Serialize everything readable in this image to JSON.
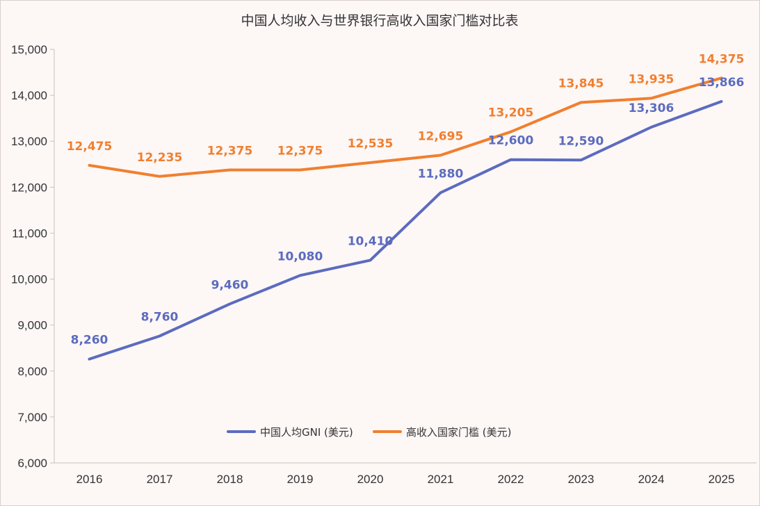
{
  "chart_data": {
    "type": "line",
    "title": "中国人均收入与世界银行高收入国家门槛对比表",
    "xlabel": "",
    "ylabel": "",
    "categories": [
      "2016",
      "2017",
      "2018",
      "2019",
      "2020",
      "2021",
      "2022",
      "2023",
      "2024",
      "2025"
    ],
    "ylim": [
      6000,
      15000
    ],
    "yticks": [
      "6,000",
      "7,000",
      "8,000",
      "9,000",
      "10,000",
      "11,000",
      "12,000",
      "13,000",
      "14,000",
      "15,000"
    ],
    "ytick_values": [
      6000,
      7000,
      8000,
      9000,
      10000,
      11000,
      12000,
      13000,
      14000,
      15000
    ],
    "grid": false,
    "legend_position": "bottom-center inside plot",
    "series": [
      {
        "name": "中国人均GNI (美元)",
        "color": "#5b6bbf",
        "values": [
          8260,
          8760,
          9460,
          10080,
          10410,
          11880,
          12600,
          12590,
          13306,
          13866
        ],
        "labels": [
          "8,260",
          "8,760",
          "9,460",
          "10,080",
          "10,410",
          "11,880",
          "12,600",
          "12,590",
          "13,306",
          "13,866"
        ]
      },
      {
        "name": "高收入国家门槛 (美元)",
        "color": "#f07f2f",
        "values": [
          12475,
          12235,
          12375,
          12375,
          12535,
          12695,
          13205,
          13845,
          13935,
          14375
        ],
        "labels": [
          "12,475",
          "12,235",
          "12,375",
          "12,375",
          "12,535",
          "12,695",
          "13,205",
          "13,845",
          "13,935",
          "14,375"
        ]
      }
    ],
    "drop_line_color": "#8f86c9"
  }
}
